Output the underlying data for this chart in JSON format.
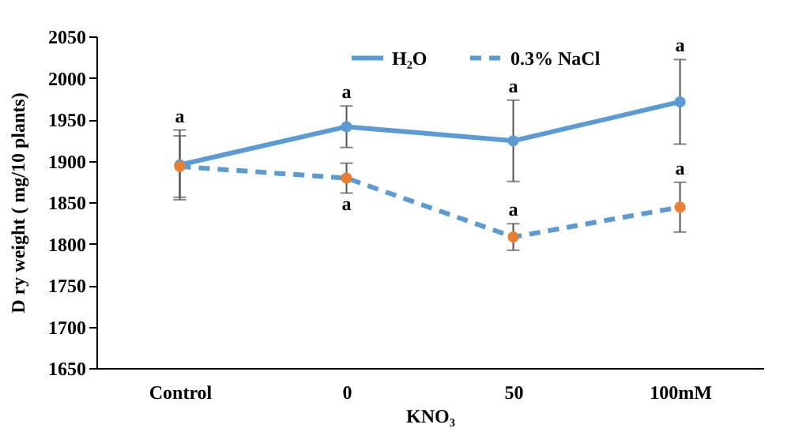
{
  "chart_data": {
    "type": "line",
    "xlabel": "KNO₃",
    "ylabel": "D ry weight ( mg/10 plants)",
    "categories": [
      "Control",
      "0",
      "50",
      "100mM"
    ],
    "series": [
      {
        "name": "H₂O",
        "color": "#5b9bd5",
        "values": [
          1895,
          1941,
          1924,
          1971
        ],
        "errors": [
          42,
          25,
          49,
          51
        ],
        "line_style": "solid",
        "value_labels": [
          "a",
          "a",
          "a",
          "a"
        ]
      },
      {
        "name": "0.3% NaCl",
        "color": "#5b9bd5",
        "colors": [
          "#ed7d31",
          "#ed7d31",
          "#ed7d31",
          "#ed7d31"
        ],
        "values": [
          1893,
          1879,
          1808,
          1844
        ],
        "errors": [
          37,
          18,
          16,
          30
        ],
        "line_style": "dashed",
        "value_labels": [
          null,
          "a",
          "a",
          "a"
        ]
      }
    ],
    "ylim": [
      1650,
      2050
    ],
    "yticks": [
      1650,
      1700,
      1750,
      1800,
      1850,
      1900,
      1950,
      2000,
      2050
    ],
    "marker": "circle",
    "legend": "top",
    "grid": false
  }
}
